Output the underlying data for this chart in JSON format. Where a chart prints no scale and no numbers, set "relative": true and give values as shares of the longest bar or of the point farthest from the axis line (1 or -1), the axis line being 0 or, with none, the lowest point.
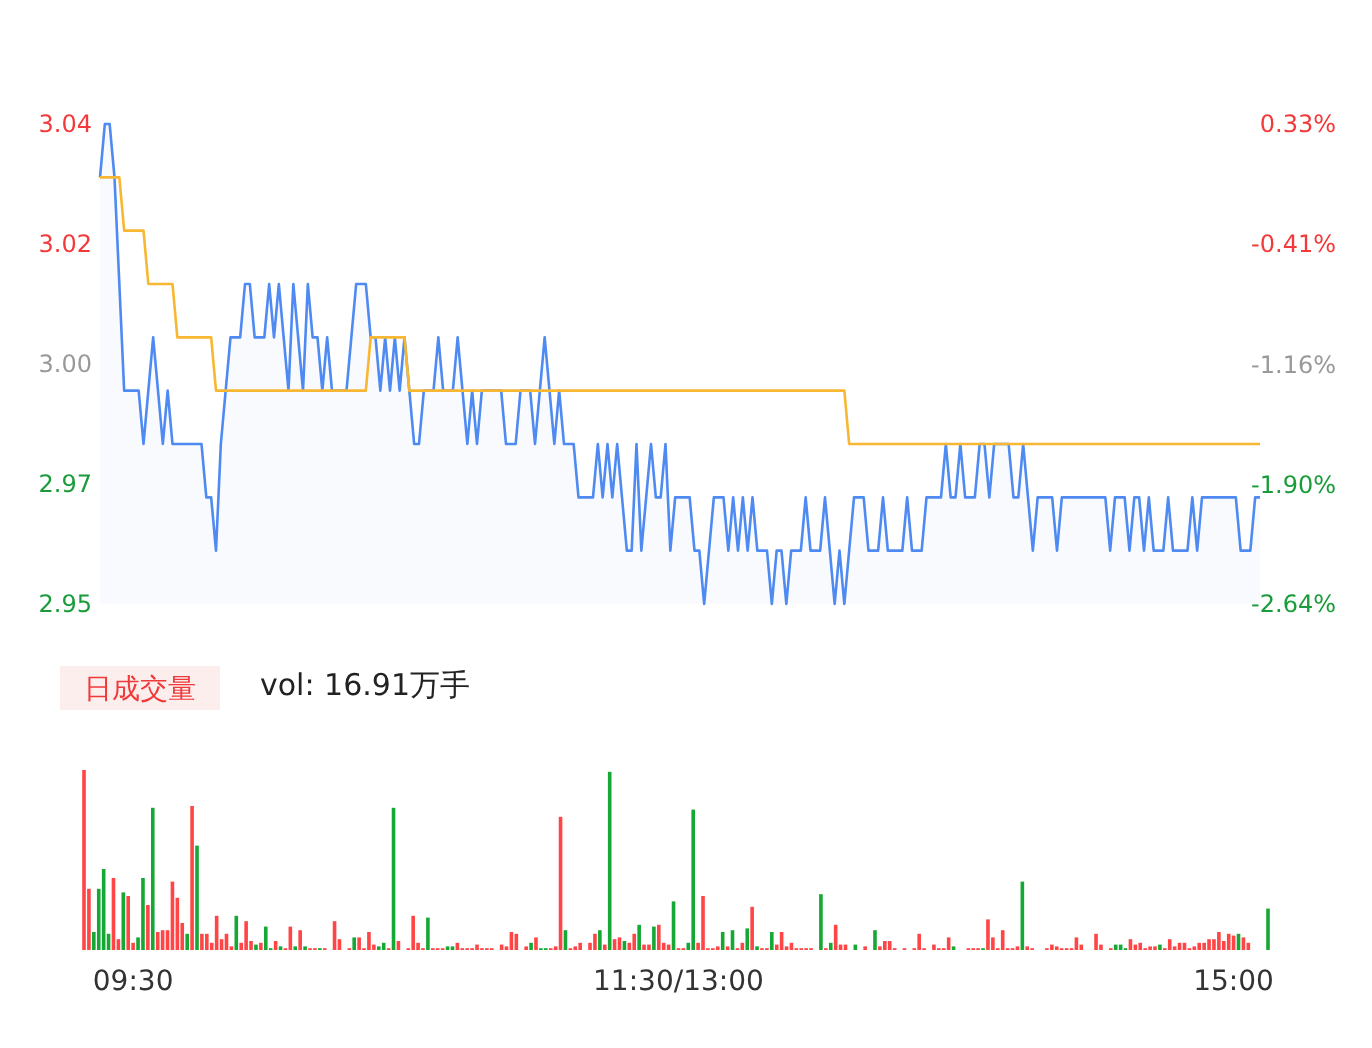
{
  "chart_data": [
    {
      "type": "line",
      "categories": [
        null,
        null,
        null,
        null,
        null,
        null,
        null,
        null,
        null,
        null,
        null,
        null,
        null,
        null,
        null,
        null,
        null,
        null,
        null,
        null,
        null,
        null,
        null,
        null,
        null,
        null,
        null,
        null,
        null,
        null,
        null,
        null,
        null,
        null,
        null,
        null,
        null,
        null,
        null,
        null,
        null,
        null,
        null,
        null,
        null,
        null,
        null,
        null,
        null,
        null,
        null,
        null,
        null,
        null,
        null,
        null,
        null,
        null,
        null,
        null,
        null,
        null,
        null,
        null,
        null,
        null,
        null,
        null,
        null,
        null,
        null,
        null,
        null,
        null,
        null,
        null,
        null,
        null,
        null,
        null,
        null,
        null,
        null,
        null,
        null,
        null,
        null,
        null,
        null,
        null,
        null,
        null,
        null,
        null,
        null,
        null,
        null,
        null,
        null,
        null,
        null,
        null,
        null,
        null,
        null,
        null,
        null,
        null,
        null,
        null,
        null,
        null,
        null,
        null,
        null,
        null,
        null,
        null,
        null,
        null,
        null,
        null,
        null,
        null,
        null,
        null,
        null,
        null,
        null,
        null,
        null,
        null,
        null,
        null,
        null,
        null,
        null,
        null,
        null,
        null,
        null,
        null,
        null,
        null,
        null,
        null,
        null,
        null,
        null,
        null,
        null,
        null,
        null,
        null,
        null,
        null,
        null,
        null,
        null,
        null,
        null,
        null,
        null,
        null,
        null,
        null,
        null,
        null,
        null,
        null,
        null,
        null,
        null,
        null,
        null,
        null,
        null,
        null,
        null,
        null,
        null,
        null,
        null,
        null,
        null,
        null,
        null,
        null,
        null,
        null,
        null,
        null,
        null,
        null,
        null,
        null,
        null,
        null,
        null,
        null,
        null,
        null,
        null,
        null,
        null,
        null,
        null,
        null,
        null,
        null,
        null,
        null,
        null,
        null,
        null,
        null,
        null,
        null,
        null,
        null,
        null,
        null,
        null,
        null,
        null,
        null,
        null,
        null,
        null,
        null,
        null,
        null,
        null,
        null,
        null,
        null,
        null,
        null,
        null,
        null,
        null
      ],
      "ylim": [
        2.95,
        3.04
      ],
      "yticks": [
        {
          "value": 3.04,
          "label": "3.04"
        },
        {
          "value": 3.0175,
          "label": "3.02"
        },
        {
          "value": 2.995,
          "label": "3.00"
        },
        {
          "value": 2.9725,
          "label": "2.97"
        },
        {
          "value": 2.95,
          "label": "2.95"
        }
      ],
      "y2lim": [
        -2.64,
        0.33
      ],
      "y2ticks": [
        {
          "value": 0.33,
          "label": "0.33%"
        },
        {
          "value": -0.41,
          "label": "-0.41%"
        },
        {
          "value": -1.16,
          "label": "-1.16%"
        },
        {
          "value": -1.9,
          "label": "-1.90%"
        },
        {
          "value": -2.64,
          "label": "-2.64%"
        }
      ],
      "line_style": "solid",
      "series": [
        {
          "type": "area",
          "color": "#4e8af2",
          "values": [
            3.03,
            3.04,
            3.04,
            3.03,
            3.01,
            2.99,
            2.99,
            2.99,
            2.99,
            2.98,
            2.99,
            3.0,
            2.99,
            2.98,
            2.99,
            2.98,
            2.98,
            2.98,
            2.98,
            2.98,
            2.98,
            2.98,
            2.97,
            2.97,
            2.96,
            2.98,
            2.99,
            3.0,
            3.0,
            3.0,
            3.01,
            3.01,
            3.0,
            3.0,
            3.0,
            3.01,
            3.0,
            3.01,
            3.0,
            2.99,
            3.01,
            3.0,
            2.99,
            3.01,
            3.0,
            3.0,
            2.99,
            3.0,
            2.99,
            2.99,
            2.99,
            2.99,
            3.0,
            3.01,
            3.01,
            3.01,
            3.0,
            3.0,
            2.99,
            3.0,
            2.99,
            3.0,
            2.99,
            3.0,
            2.99,
            2.98,
            2.98,
            2.99,
            2.99,
            2.99,
            3.0,
            2.99,
            2.99,
            2.99,
            3.0,
            2.99,
            2.98,
            2.99,
            2.98,
            2.99,
            2.99,
            2.99,
            2.99,
            2.99,
            2.98,
            2.98,
            2.98,
            2.99,
            2.99,
            2.99,
            2.98,
            2.99,
            3.0,
            2.99,
            2.98,
            2.99,
            2.98,
            2.98,
            2.98,
            2.97,
            2.97,
            2.97,
            2.97,
            2.98,
            2.97,
            2.98,
            2.97,
            2.98,
            2.97,
            2.96,
            2.96,
            2.98,
            2.96,
            2.97,
            2.98,
            2.97,
            2.97,
            2.98,
            2.96,
            2.97,
            2.97,
            2.97,
            2.97,
            2.96,
            2.96,
            2.95,
            2.96,
            2.97,
            2.97,
            2.97,
            2.96,
            2.97,
            2.96,
            2.97,
            2.96,
            2.97,
            2.96,
            2.96,
            2.96,
            2.95,
            2.96,
            2.96,
            2.95,
            2.96,
            2.96,
            2.96,
            2.97,
            2.96,
            2.96,
            2.96,
            2.97,
            2.96,
            2.95,
            2.96,
            2.95,
            2.96,
            2.97,
            2.97,
            2.97,
            2.96,
            2.96,
            2.96,
            2.97,
            2.96,
            2.96,
            2.96,
            2.96,
            2.97,
            2.96,
            2.96,
            2.96,
            2.97,
            2.97,
            2.97,
            2.97,
            2.98,
            2.97,
            2.97,
            2.98,
            2.97,
            2.97,
            2.97,
            2.98,
            2.98,
            2.97,
            2.98,
            2.98,
            2.98,
            2.98,
            2.97,
            2.97,
            2.98,
            2.97,
            2.96,
            2.97,
            2.97,
            2.97,
            2.97,
            2.96,
            2.97,
            2.97,
            2.97,
            2.97,
            2.97,
            2.97,
            2.97,
            2.97,
            2.97,
            2.97,
            2.96,
            2.97,
            2.97,
            2.97,
            2.96,
            2.97,
            2.97,
            2.96,
            2.97,
            2.96,
            2.96,
            2.96,
            2.97,
            2.96,
            2.96,
            2.96,
            2.96,
            2.97,
            2.96,
            2.97,
            2.97,
            2.97,
            2.97,
            2.97,
            2.97,
            2.97,
            2.97,
            2.96,
            2.96,
            2.96,
            2.97,
            2.97
          ]
        },
        {
          "type": "line",
          "color": "#f7b733",
          "values": [
            3.03,
            3.03,
            3.03,
            3.03,
            3.03,
            3.02,
            3.02,
            3.02,
            3.02,
            3.02,
            3.01,
            3.01,
            3.01,
            3.01,
            3.01,
            3.01,
            3.0,
            3.0,
            3.0,
            3.0,
            3.0,
            3.0,
            3.0,
            3.0,
            2.99,
            2.99,
            2.99,
            2.99,
            2.99,
            2.99,
            2.99,
            2.99,
            2.99,
            2.99,
            2.99,
            2.99,
            2.99,
            2.99,
            2.99,
            2.99,
            2.99,
            2.99,
            2.99,
            2.99,
            2.99,
            2.99,
            2.99,
            2.99,
            2.99,
            2.99,
            2.99,
            2.99,
            2.99,
            2.99,
            2.99,
            2.99,
            3.0,
            3.0,
            3.0,
            3.0,
            3.0,
            3.0,
            3.0,
            3.0,
            2.99,
            2.99,
            2.99,
            2.99,
            2.99,
            2.99,
            2.99,
            2.99,
            2.99,
            2.99,
            2.99,
            2.99,
            2.99,
            2.99,
            2.99,
            2.99,
            2.99,
            2.99,
            2.99,
            2.99,
            2.99,
            2.99,
            2.99,
            2.99,
            2.99,
            2.99,
            2.99,
            2.99,
            2.99,
            2.99,
            2.99,
            2.99,
            2.99,
            2.99,
            2.99,
            2.99,
            2.99,
            2.99,
            2.99,
            2.99,
            2.99,
            2.99,
            2.99,
            2.99,
            2.99,
            2.99,
            2.99,
            2.99,
            2.99,
            2.99,
            2.99,
            2.99,
            2.99,
            2.99,
            2.99,
            2.99,
            2.99,
            2.99,
            2.99,
            2.99,
            2.99,
            2.99,
            2.99,
            2.99,
            2.99,
            2.99,
            2.99,
            2.99,
            2.99,
            2.99,
            2.99,
            2.99,
            2.99,
            2.99,
            2.99,
            2.99,
            2.99,
            2.99,
            2.99,
            2.99,
            2.99,
            2.99,
            2.99,
            2.99,
            2.99,
            2.99,
            2.99,
            2.99,
            2.99,
            2.99,
            2.99,
            2.98,
            2.98,
            2.98,
            2.98,
            2.98,
            2.98,
            2.98,
            2.98,
            2.98,
            2.98,
            2.98,
            2.98,
            2.98,
            2.98,
            2.98,
            2.98,
            2.98,
            2.98,
            2.98,
            2.98,
            2.98,
            2.98,
            2.98,
            2.98,
            2.98,
            2.98,
            2.98,
            2.98,
            2.98,
            2.98,
            2.98,
            2.98,
            2.98,
            2.98,
            2.98,
            2.98,
            2.98,
            2.98,
            2.98,
            2.98,
            2.98,
            2.98,
            2.98,
            2.98,
            2.98,
            2.98,
            2.98,
            2.98,
            2.98,
            2.98,
            2.98,
            2.98,
            2.98,
            2.98,
            2.98,
            2.98,
            2.98,
            2.98,
            2.98,
            2.98,
            2.98,
            2.98,
            2.98,
            2.98,
            2.98,
            2.98,
            2.98,
            2.98,
            2.98,
            2.98,
            2.98,
            2.98,
            2.98,
            2.98,
            2.98,
            2.98,
            2.98,
            2.98,
            2.98,
            2.98,
            2.98,
            2.98,
            2.98,
            2.98,
            2.98,
            2.98
          ]
        }
      ]
    },
    {
      "type": "bar",
      "relative": true,
      "title": "日成交量",
      "subtitle": "vol: 16.91万手",
      "categories": [
        null,
        null,
        null,
        null,
        null,
        null,
        null,
        null,
        null,
        null,
        "09:30",
        null,
        null,
        null,
        null,
        null,
        null,
        null,
        null,
        null,
        null,
        null,
        null,
        null,
        null,
        null,
        null,
        null,
        null,
        null,
        null,
        null,
        null,
        null,
        null,
        null,
        null,
        null,
        null,
        null,
        null,
        null,
        null,
        null,
        null,
        null,
        null,
        null,
        null,
        null,
        null,
        null,
        null,
        null,
        null,
        null,
        null,
        null,
        null,
        null,
        null,
        null,
        null,
        null,
        null,
        null,
        null,
        null,
        null,
        null,
        null,
        null,
        null,
        null,
        null,
        null,
        null,
        null,
        null,
        null,
        null,
        null,
        null,
        null,
        null,
        null,
        null,
        null,
        null,
        null,
        null,
        null,
        null,
        null,
        null,
        null,
        null,
        null,
        null,
        null,
        null,
        null,
        null,
        null,
        null,
        null,
        null,
        null,
        null,
        null,
        null,
        null,
        null,
        null,
        null,
        null,
        null,
        null,
        null,
        null,
        null,
        "11:30/13:00",
        null,
        null,
        null,
        null,
        null,
        null,
        null,
        null,
        null,
        null,
        null,
        null,
        null,
        null,
        null,
        null,
        null,
        null,
        null,
        null,
        null,
        null,
        null,
        null,
        null,
        null,
        null,
        null,
        null,
        null,
        null,
        null,
        null,
        null,
        null,
        null,
        null,
        null,
        null,
        null,
        null,
        null,
        null,
        null,
        null,
        null,
        null,
        null,
        null,
        null,
        null,
        null,
        null,
        null,
        null,
        null,
        null,
        null,
        null,
        null,
        null,
        null,
        null,
        null,
        null,
        null,
        null,
        null,
        null,
        null,
        null,
        null,
        null,
        null,
        null,
        null,
        null,
        null,
        null,
        null,
        null,
        null,
        null,
        null,
        null,
        null,
        null,
        null,
        null,
        null,
        null,
        null,
        null,
        null,
        null,
        null,
        null,
        null,
        null,
        null,
        null,
        null,
        null,
        null,
        null,
        null,
        null,
        null,
        null,
        null,
        null,
        null,
        "15:00",
        null,
        null,
        null,
        null,
        null,
        null,
        null
      ],
      "values": [
        1.0,
        0.34,
        0.1,
        0.34,
        0.45,
        0.09,
        0.4,
        0.06,
        0.32,
        0.3,
        0.04,
        0.07,
        0.4,
        0.25,
        0.79,
        0.1,
        0.11,
        0.11,
        0.38,
        0.29,
        0.15,
        0.09,
        0.8,
        0.58,
        0.09,
        0.09,
        0.04,
        0.19,
        0.06,
        0.09,
        0.02,
        0.19,
        0.04,
        0.16,
        0.05,
        0.03,
        0.04,
        0.13,
        0.01,
        0.05,
        0.02,
        0.01,
        0.13,
        0.02,
        0.11,
        0.02,
        0.01,
        0.01,
        0.01,
        0.01,
        0,
        0.16,
        0.06,
        0,
        0.01,
        0.07,
        0.07,
        0.01,
        0.1,
        0.03,
        0.02,
        0.04,
        0.01,
        0.79,
        0.05,
        0,
        0.01,
        0.19,
        0.04,
        0.01,
        0.18,
        0.01,
        0.01,
        0.01,
        0.02,
        0.02,
        0.04,
        0.01,
        0.01,
        0.01,
        0.03,
        0.01,
        0.01,
        0.01,
        0,
        0.03,
        0.02,
        0.1,
        0.09,
        0,
        0.02,
        0.04,
        0.07,
        0.01,
        0.01,
        0.01,
        0.02,
        0.74,
        0.11,
        0.01,
        0.02,
        0.04,
        0,
        0.04,
        0.09,
        0.11,
        0.03,
        0.99,
        0.06,
        0.07,
        0.05,
        0.04,
        0.09,
        0.14,
        0.03,
        0.03,
        0.13,
        0.14,
        0.04,
        0.03,
        0.27,
        0.01,
        0.01,
        0.04,
        0.78,
        0.04,
        0.3,
        0.01,
        0.01,
        0.02,
        0.1,
        0.02,
        0.11,
        0.01,
        0.04,
        0.12,
        0.24,
        0.02,
        0.01,
        0.01,
        0.1,
        0.03,
        0.1,
        0.02,
        0.04,
        0.01,
        0.01,
        0.01,
        0.01,
        0,
        0.31,
        0.01,
        0.04,
        0.14,
        0.03,
        0.03,
        0,
        0.03,
        0,
        0.02,
        0,
        0.11,
        0.02,
        0.05,
        0.05,
        0.01,
        0,
        0.01,
        0,
        0.01,
        0.09,
        0.01,
        0,
        0.03,
        0.01,
        0.01,
        0.07,
        0.02,
        0,
        0,
        0.01,
        0.01,
        0.01,
        0.01,
        0.17,
        0.07,
        0.01,
        0.11,
        0.01,
        0.01,
        0.02,
        0.38,
        0.02,
        0.01,
        0,
        0,
        0.01,
        0.03,
        0.02,
        0.01,
        0.01,
        0.01,
        0.07,
        0.03,
        0,
        0,
        0.09,
        0.03,
        0,
        0.01,
        0.03,
        0.03,
        0.01,
        0.06,
        0.03,
        0.04,
        0.01,
        0.02,
        0.02,
        0.03,
        0.01,
        0.06,
        0.02,
        0.04,
        0.04,
        0.01,
        0.02,
        0.04,
        0.04,
        0.06,
        0.06,
        0.1,
        0.05,
        0.09,
        0.08,
        0.09,
        0.07,
        0.04,
        0,
        0,
        0,
        0.23
      ],
      "colors": [
        "#ff4545",
        "#ff4545",
        "#15a834",
        "#15a834",
        "#15a834",
        "#15a834",
        "#ff4545",
        "#ff4545",
        "#15a834",
        "#ff4545",
        "#ff4545",
        "#15a834",
        "#15a834",
        "#ff4545",
        "#15a834",
        "#ff4545",
        "#ff4545",
        "#ff4545",
        "#ff4545",
        "#ff4545",
        "#ff4545",
        "#15a834",
        "#ff4545",
        "#15a834",
        "#ff4545",
        "#ff4545",
        "#ff4545",
        "#ff4545",
        "#ff4545",
        "#ff4545",
        "#ff4545",
        "#15a834",
        "#ff4545",
        "#ff4545",
        "#ff4545",
        "#15a834",
        "#ff4545",
        "#15a834",
        "#15a834",
        "#ff4545",
        "#15a834",
        "#ff4545",
        "#ff4545",
        "#15a834",
        "#ff4545",
        "#15a834",
        "#ff4545",
        "#ff4545",
        "#15a834",
        "#ff4545",
        "#ff4545",
        "#ff4545",
        "#ff4545",
        "#ff4545",
        "#ff4545",
        "#15a834",
        "#ff4545",
        "#ff4545",
        "#ff4545",
        "#ff4545",
        "#15a834",
        "#15a834",
        "#ff4545",
        "#15a834",
        "#ff4545",
        "#ff4545",
        "#ff4545",
        "#ff4545",
        "#ff4545",
        "#ff4545",
        "#15a834",
        "#ff4545",
        "#ff4545",
        "#ff4545",
        "#15a834",
        "#15a834",
        "#ff4545",
        "#ff4545",
        "#ff4545",
        "#ff4545",
        "#ff4545",
        "#ff4545",
        "#ff4545",
        "#ff4545",
        "#ff4545",
        "#ff4545",
        "#ff4545",
        "#ff4545",
        "#ff4545",
        "#ff4545",
        "#ff4545",
        "#15a834",
        "#ff4545",
        "#15a834",
        "#15a834",
        "#ff4545",
        "#ff4545",
        "#ff4545",
        "#15a834",
        "#ff4545",
        "#ff4545",
        "#ff4545",
        "#ff4545",
        "#ff4545",
        "#ff4545",
        "#15a834",
        "#ff4545",
        "#15a834",
        "#ff4545",
        "#ff4545",
        "#15a834",
        "#ff4545",
        "#ff4545",
        "#15a834",
        "#ff4545",
        "#ff4545",
        "#15a834",
        "#ff4545",
        "#ff4545",
        "#ff4545",
        "#15a834",
        "#ff4545",
        "#ff4545",
        "#15a834",
        "#15a834",
        "#ff4545",
        "#ff4545",
        "#ff4545",
        "#ff4545",
        "#ff4545",
        "#15a834",
        "#ff4545",
        "#15a834",
        "#ff4545",
        "#ff4545",
        "#15a834",
        "#ff4545",
        "#15a834",
        "#ff4545",
        "#ff4545",
        "#15a834",
        "#ff4545",
        "#ff4545",
        "#ff4545",
        "#ff4545",
        "#ff4545",
        "#ff4545",
        "#ff4545",
        "#ff4545",
        "#ff4545",
        "#15a834",
        "#ff4545",
        "#15a834",
        "#ff4545",
        "#ff4545",
        "#ff4545",
        "#ff4545",
        "#15a834",
        "#ff4545",
        "#ff4545",
        "#ff4545",
        "#15a834",
        "#ff4545",
        "#ff4545",
        "#ff4545",
        "#ff4545",
        "#ff4545",
        "#ff4545",
        "#ff4545",
        "#ff4545",
        "#ff4545",
        "#ff4545",
        "#ff4545",
        "#ff4545",
        "#ff4545",
        "#ff4545",
        "#ff4545",
        "#15a834",
        "#ff4545",
        "#ff4545",
        "#ff4545",
        "#ff4545",
        "#ff4545",
        "#15a834",
        "#ff4545",
        "#ff4545",
        "#ff4545",
        "#ff4545",
        "#ff4545",
        "#ff4545",
        "#ff4545",
        "#15a834",
        "#ff4545",
        "#ff4545",
        "#ff4545",
        "#ff4545",
        "#ff4545",
        "#ff4545",
        "#ff4545",
        "#ff4545",
        "#ff4545",
        "#ff4545",
        "#ff4545",
        "#ff4545",
        "#ff4545",
        "#ff4545",
        "#ff4545",
        "#ff4545",
        "#ff4545",
        "#ff4545",
        "#15a834",
        "#15a834",
        "#15a834",
        "#ff4545",
        "#ff4545",
        "#ff4545",
        "#ff4545",
        "#ff4545",
        "#ff4545",
        "#15a834",
        "#ff4545",
        "#ff4545",
        "#ff4545",
        "#ff4545",
        "#ff4545",
        "#ff4545",
        "#ff4545",
        "#ff4545",
        "#ff4545",
        "#ff4545",
        "#ff4545",
        "#ff4545",
        "#ff4545",
        "#ff4545",
        "#ff4545",
        "#15a834",
        "#ff4545",
        "#ff4545",
        "#ff4545",
        "#ff4545",
        "#ff4545",
        "#15a834"
      ]
    }
  ]
}
